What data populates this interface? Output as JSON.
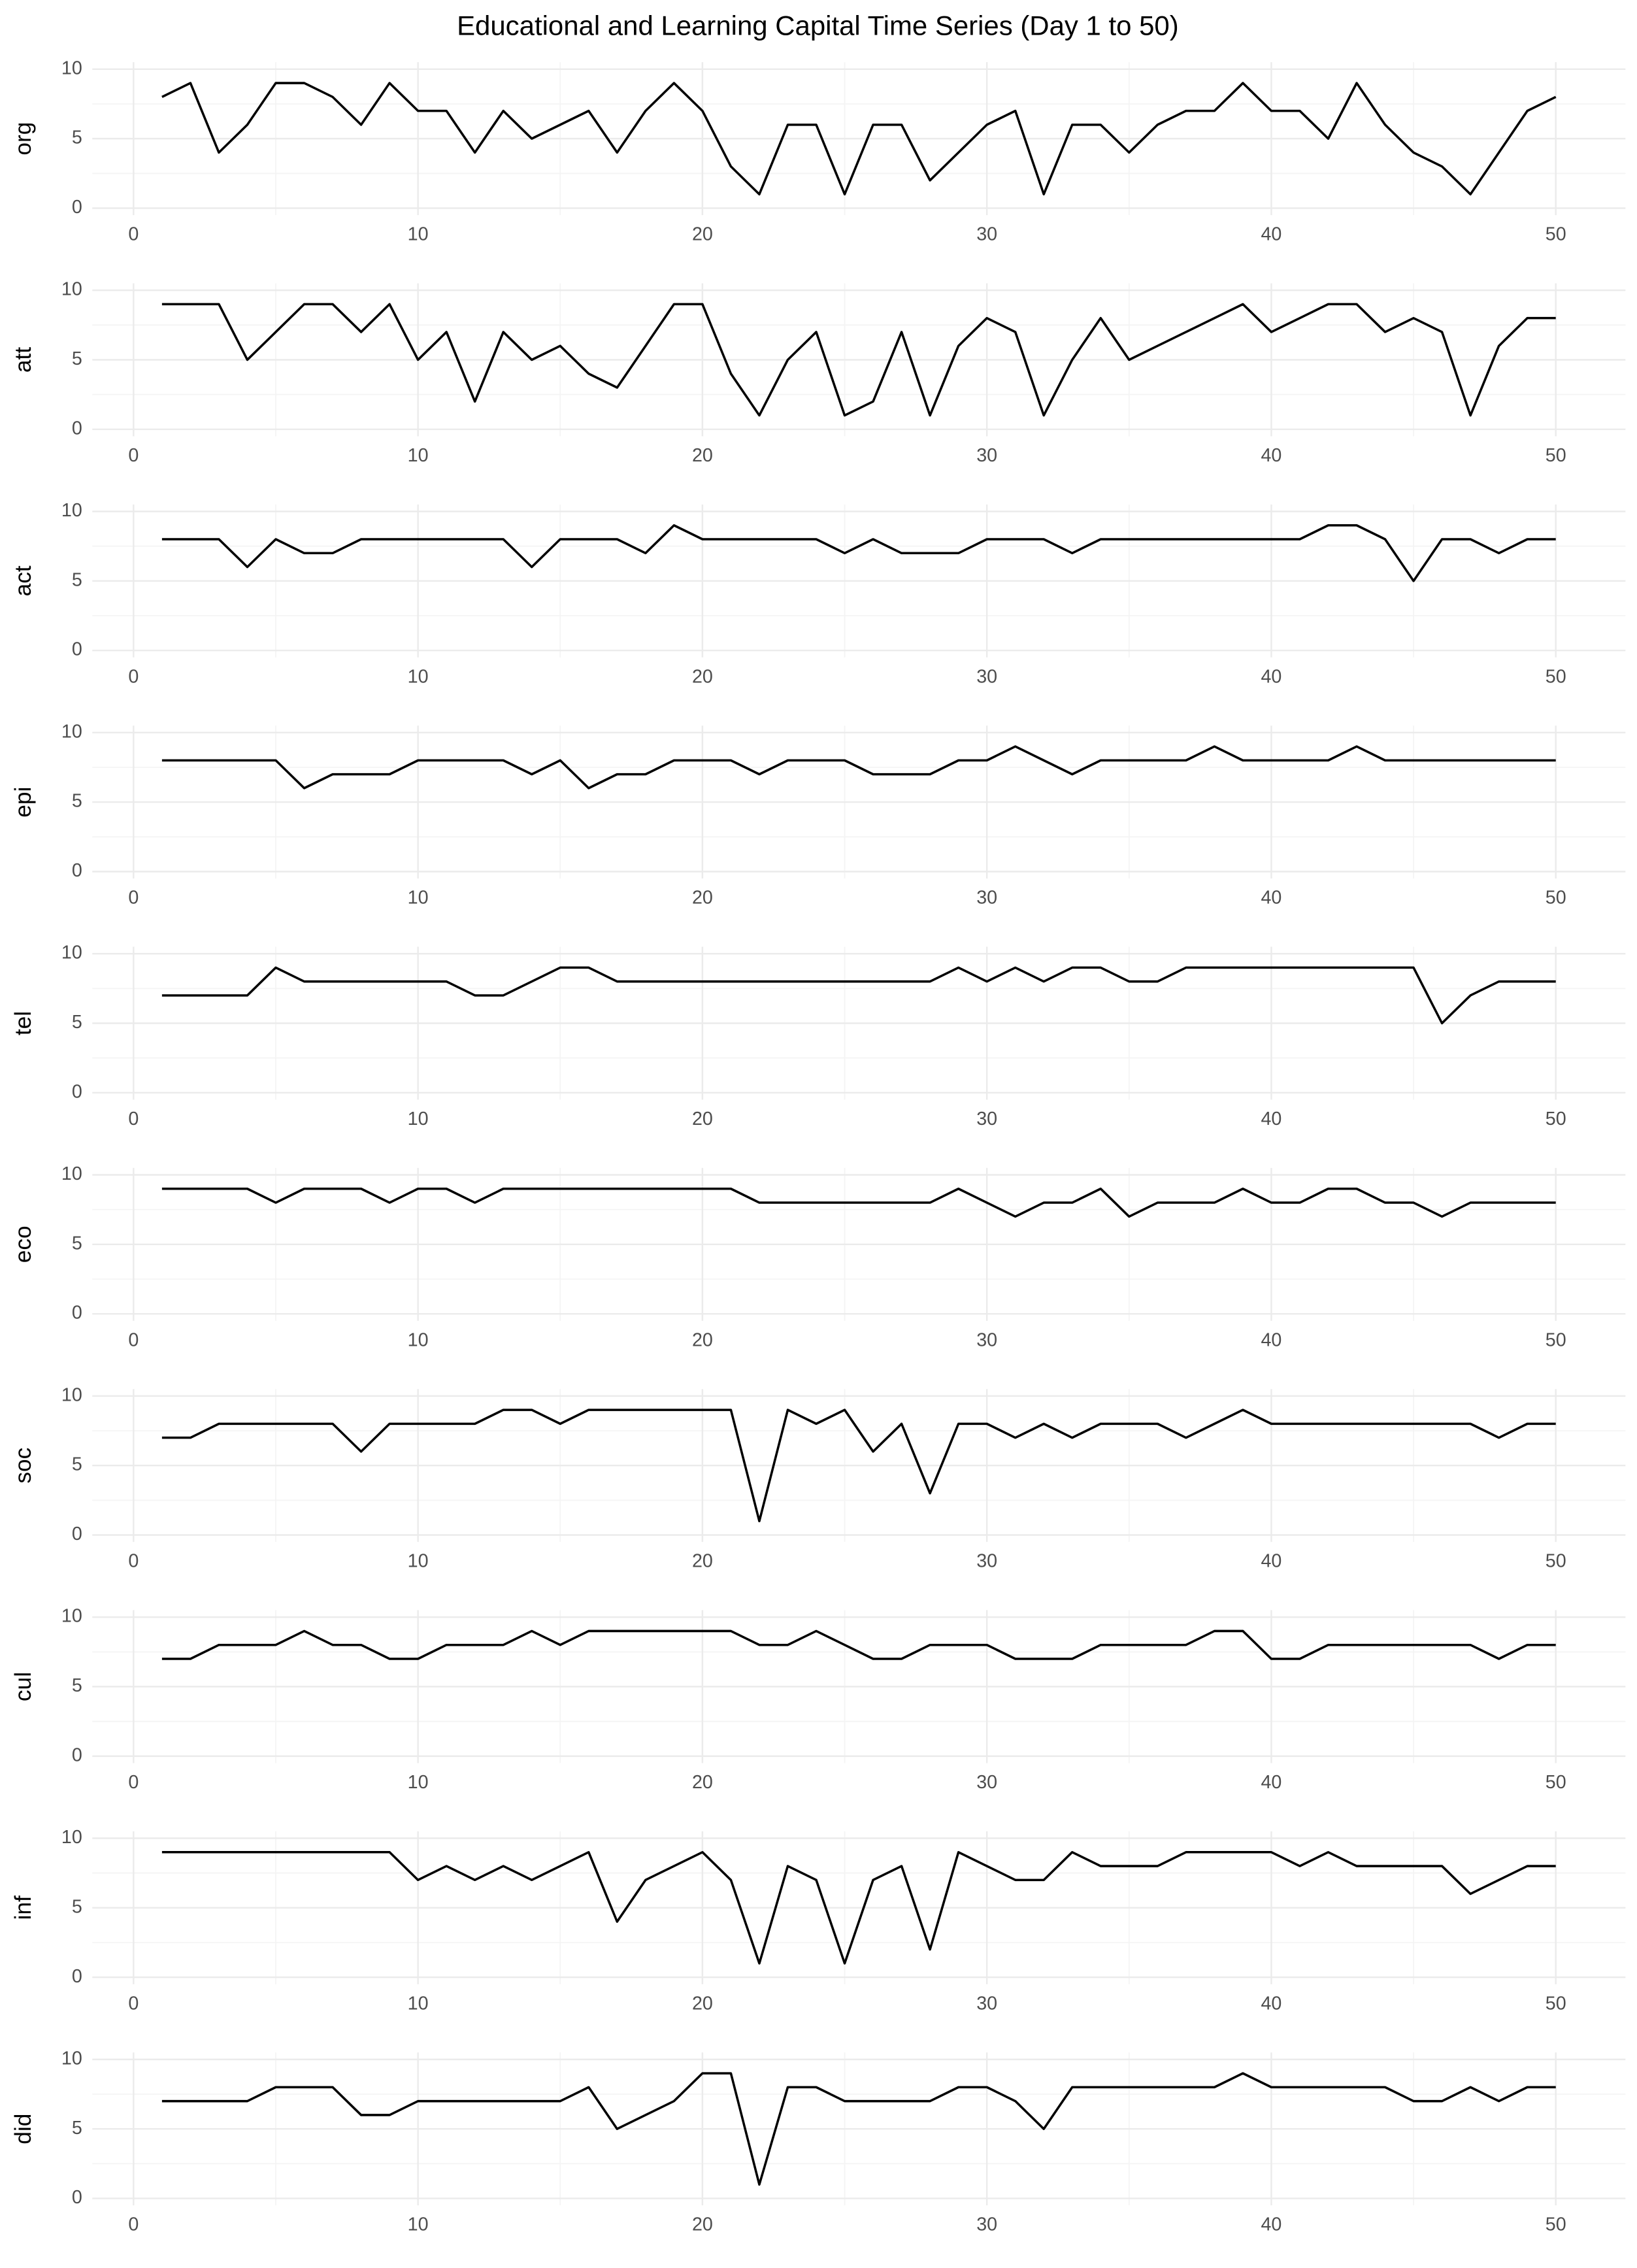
{
  "title": "Educational and Learning Capital Time Series (Day 1 to 50)",
  "chart_data": [
    {
      "type": "line",
      "ylabel": "org",
      "color": "#000000",
      "grid": true,
      "x": [
        1,
        2,
        3,
        4,
        5,
        6,
        7,
        8,
        9,
        10,
        11,
        12,
        13,
        14,
        15,
        16,
        17,
        18,
        19,
        20,
        21,
        22,
        23,
        24,
        25,
        26,
        27,
        28,
        29,
        30,
        31,
        32,
        33,
        34,
        35,
        36,
        37,
        38,
        39,
        40,
        41,
        42,
        43,
        44,
        45,
        46,
        47,
        48,
        49,
        50
      ],
      "values": [
        8,
        9,
        4,
        6,
        9,
        9,
        8,
        6,
        9,
        7,
        7,
        4,
        7,
        5,
        6,
        7,
        4,
        7,
        9,
        7,
        3,
        1,
        6,
        6,
        1,
        6,
        6,
        2,
        4,
        6,
        7,
        1,
        6,
        6,
        4,
        6,
        7,
        7,
        9,
        7,
        7,
        5,
        9,
        6,
        4,
        3,
        1,
        4,
        7,
        8
      ],
      "xlim": [
        -1.45,
        52.45
      ],
      "ylim": [
        -0.5,
        10.5
      ],
      "xticks": [
        0,
        10,
        20,
        30,
        40,
        50
      ],
      "yticks": [
        0,
        5,
        10
      ],
      "xminor": [
        5,
        15,
        25,
        35,
        45
      ],
      "yminor": [
        2.5,
        7.5
      ]
    },
    {
      "type": "line",
      "ylabel": "att",
      "color": "#000000",
      "grid": true,
      "x": [
        1,
        2,
        3,
        4,
        5,
        6,
        7,
        8,
        9,
        10,
        11,
        12,
        13,
        14,
        15,
        16,
        17,
        18,
        19,
        20,
        21,
        22,
        23,
        24,
        25,
        26,
        27,
        28,
        29,
        30,
        31,
        32,
        33,
        34,
        35,
        36,
        37,
        38,
        39,
        40,
        41,
        42,
        43,
        44,
        45,
        46,
        47,
        48,
        49,
        50
      ],
      "values": [
        9,
        9,
        9,
        5,
        7,
        9,
        9,
        7,
        9,
        5,
        7,
        2,
        7,
        5,
        6,
        4,
        3,
        6,
        9,
        9,
        4,
        1,
        5,
        7,
        1,
        2,
        7,
        1,
        6,
        8,
        7,
        1,
        5,
        8,
        5,
        6,
        7,
        8,
        9,
        7,
        8,
        9,
        9,
        7,
        8,
        7,
        1,
        6,
        8,
        8
      ],
      "xlim": [
        -1.45,
        52.45
      ],
      "ylim": [
        -0.5,
        10.5
      ],
      "xticks": [
        0,
        10,
        20,
        30,
        40,
        50
      ],
      "yticks": [
        0,
        5,
        10
      ],
      "xminor": [
        5,
        15,
        25,
        35,
        45
      ],
      "yminor": [
        2.5,
        7.5
      ]
    },
    {
      "type": "line",
      "ylabel": "act",
      "color": "#000000",
      "grid": true,
      "x": [
        1,
        2,
        3,
        4,
        5,
        6,
        7,
        8,
        9,
        10,
        11,
        12,
        13,
        14,
        15,
        16,
        17,
        18,
        19,
        20,
        21,
        22,
        23,
        24,
        25,
        26,
        27,
        28,
        29,
        30,
        31,
        32,
        33,
        34,
        35,
        36,
        37,
        38,
        39,
        40,
        41,
        42,
        43,
        44,
        45,
        46,
        47,
        48,
        49,
        50
      ],
      "values": [
        8,
        8,
        8,
        6,
        8,
        7,
        7,
        8,
        8,
        8,
        8,
        8,
        8,
        6,
        8,
        8,
        8,
        7,
        9,
        8,
        8,
        8,
        8,
        8,
        7,
        8,
        7,
        7,
        7,
        8,
        8,
        8,
        7,
        8,
        8,
        8,
        8,
        8,
        8,
        8,
        8,
        9,
        9,
        8,
        5,
        8,
        8,
        7,
        8,
        8
      ],
      "xlim": [
        -1.45,
        52.45
      ],
      "ylim": [
        -0.5,
        10.5
      ],
      "xticks": [
        0,
        10,
        20,
        30,
        40,
        50
      ],
      "yticks": [
        0,
        5,
        10
      ],
      "xminor": [
        5,
        15,
        25,
        35,
        45
      ],
      "yminor": [
        2.5,
        7.5
      ]
    },
    {
      "type": "line",
      "ylabel": "epi",
      "color": "#000000",
      "grid": true,
      "x": [
        1,
        2,
        3,
        4,
        5,
        6,
        7,
        8,
        9,
        10,
        11,
        12,
        13,
        14,
        15,
        16,
        17,
        18,
        19,
        20,
        21,
        22,
        23,
        24,
        25,
        26,
        27,
        28,
        29,
        30,
        31,
        32,
        33,
        34,
        35,
        36,
        37,
        38,
        39,
        40,
        41,
        42,
        43,
        44,
        45,
        46,
        47,
        48,
        49,
        50
      ],
      "values": [
        8,
        8,
        8,
        8,
        8,
        6,
        7,
        7,
        7,
        8,
        8,
        8,
        8,
        7,
        8,
        6,
        7,
        7,
        8,
        8,
        8,
        7,
        8,
        8,
        8,
        7,
        7,
        7,
        8,
        8,
        9,
        8,
        7,
        8,
        8,
        8,
        8,
        9,
        8,
        8,
        8,
        8,
        9,
        8,
        8,
        8,
        8,
        8,
        8,
        8
      ],
      "xlim": [
        -1.45,
        52.45
      ],
      "ylim": [
        -0.5,
        10.5
      ],
      "xticks": [
        0,
        10,
        20,
        30,
        40,
        50
      ],
      "yticks": [
        0,
        5,
        10
      ],
      "xminor": [
        5,
        15,
        25,
        35,
        45
      ],
      "yminor": [
        2.5,
        7.5
      ]
    },
    {
      "type": "line",
      "ylabel": "tel",
      "color": "#000000",
      "grid": true,
      "x": [
        1,
        2,
        3,
        4,
        5,
        6,
        7,
        8,
        9,
        10,
        11,
        12,
        13,
        14,
        15,
        16,
        17,
        18,
        19,
        20,
        21,
        22,
        23,
        24,
        25,
        26,
        27,
        28,
        29,
        30,
        31,
        32,
        33,
        34,
        35,
        36,
        37,
        38,
        39,
        40,
        41,
        42,
        43,
        44,
        45,
        46,
        47,
        48,
        49,
        50
      ],
      "values": [
        7,
        7,
        7,
        7,
        9,
        8,
        8,
        8,
        8,
        8,
        8,
        7,
        7,
        8,
        9,
        9,
        8,
        8,
        8,
        8,
        8,
        8,
        8,
        8,
        8,
        8,
        8,
        8,
        9,
        8,
        9,
        8,
        9,
        9,
        8,
        8,
        9,
        9,
        9,
        9,
        9,
        9,
        9,
        9,
        9,
        5,
        7,
        8,
        8,
        8
      ],
      "xlim": [
        -1.45,
        52.45
      ],
      "ylim": [
        -0.5,
        10.5
      ],
      "xticks": [
        0,
        10,
        20,
        30,
        40,
        50
      ],
      "yticks": [
        0,
        5,
        10
      ],
      "xminor": [
        5,
        15,
        25,
        35,
        45
      ],
      "yminor": [
        2.5,
        7.5
      ]
    },
    {
      "type": "line",
      "ylabel": "eco",
      "color": "#000000",
      "grid": true,
      "x": [
        1,
        2,
        3,
        4,
        5,
        6,
        7,
        8,
        9,
        10,
        11,
        12,
        13,
        14,
        15,
        16,
        17,
        18,
        19,
        20,
        21,
        22,
        23,
        24,
        25,
        26,
        27,
        28,
        29,
        30,
        31,
        32,
        33,
        34,
        35,
        36,
        37,
        38,
        39,
        40,
        41,
        42,
        43,
        44,
        45,
        46,
        47,
        48,
        49,
        50
      ],
      "values": [
        9,
        9,
        9,
        9,
        8,
        9,
        9,
        9,
        8,
        9,
        9,
        8,
        9,
        9,
        9,
        9,
        9,
        9,
        9,
        9,
        9,
        8,
        8,
        8,
        8,
        8,
        8,
        8,
        9,
        8,
        7,
        8,
        8,
        9,
        7,
        8,
        8,
        8,
        9,
        8,
        8,
        9,
        9,
        8,
        8,
        7,
        8,
        8,
        8,
        8
      ],
      "xlim": [
        -1.45,
        52.45
      ],
      "ylim": [
        -0.5,
        10.5
      ],
      "xticks": [
        0,
        10,
        20,
        30,
        40,
        50
      ],
      "yticks": [
        0,
        5,
        10
      ],
      "xminor": [
        5,
        15,
        25,
        35,
        45
      ],
      "yminor": [
        2.5,
        7.5
      ]
    },
    {
      "type": "line",
      "ylabel": "soc",
      "color": "#000000",
      "grid": true,
      "x": [
        1,
        2,
        3,
        4,
        5,
        6,
        7,
        8,
        9,
        10,
        11,
        12,
        13,
        14,
        15,
        16,
        17,
        18,
        19,
        20,
        21,
        22,
        23,
        24,
        25,
        26,
        27,
        28,
        29,
        30,
        31,
        32,
        33,
        34,
        35,
        36,
        37,
        38,
        39,
        40,
        41,
        42,
        43,
        44,
        45,
        46,
        47,
        48,
        49,
        50
      ],
      "values": [
        7,
        7,
        8,
        8,
        8,
        8,
        8,
        6,
        8,
        8,
        8,
        8,
        9,
        9,
        8,
        9,
        9,
        9,
        9,
        9,
        9,
        1,
        9,
        8,
        9,
        6,
        8,
        3,
        8,
        8,
        7,
        8,
        7,
        8,
        8,
        8,
        7,
        8,
        9,
        8,
        8,
        8,
        8,
        8,
        8,
        8,
        8,
        7,
        8,
        8
      ],
      "xlim": [
        -1.45,
        52.45
      ],
      "ylim": [
        -0.5,
        10.5
      ],
      "xticks": [
        0,
        10,
        20,
        30,
        40,
        50
      ],
      "yticks": [
        0,
        5,
        10
      ],
      "xminor": [
        5,
        15,
        25,
        35,
        45
      ],
      "yminor": [
        2.5,
        7.5
      ]
    },
    {
      "type": "line",
      "ylabel": "cul",
      "color": "#000000",
      "grid": true,
      "x": [
        1,
        2,
        3,
        4,
        5,
        6,
        7,
        8,
        9,
        10,
        11,
        12,
        13,
        14,
        15,
        16,
        17,
        18,
        19,
        20,
        21,
        22,
        23,
        24,
        25,
        26,
        27,
        28,
        29,
        30,
        31,
        32,
        33,
        34,
        35,
        36,
        37,
        38,
        39,
        40,
        41,
        42,
        43,
        44,
        45,
        46,
        47,
        48,
        49,
        50
      ],
      "values": [
        7,
        7,
        8,
        8,
        8,
        9,
        8,
        8,
        7,
        7,
        8,
        8,
        8,
        9,
        8,
        9,
        9,
        9,
        9,
        9,
        9,
        8,
        8,
        9,
        8,
        7,
        7,
        8,
        8,
        8,
        7,
        7,
        7,
        8,
        8,
        8,
        8,
        9,
        9,
        7,
        7,
        8,
        8,
        8,
        8,
        8,
        8,
        7,
        8,
        8
      ],
      "xlim": [
        -1.45,
        52.45
      ],
      "ylim": [
        -0.5,
        10.5
      ],
      "xticks": [
        0,
        10,
        20,
        30,
        40,
        50
      ],
      "yticks": [
        0,
        5,
        10
      ],
      "xminor": [
        5,
        15,
        25,
        35,
        45
      ],
      "yminor": [
        2.5,
        7.5
      ]
    },
    {
      "type": "line",
      "ylabel": "inf",
      "color": "#000000",
      "grid": true,
      "x": [
        1,
        2,
        3,
        4,
        5,
        6,
        7,
        8,
        9,
        10,
        11,
        12,
        13,
        14,
        15,
        16,
        17,
        18,
        19,
        20,
        21,
        22,
        23,
        24,
        25,
        26,
        27,
        28,
        29,
        30,
        31,
        32,
        33,
        34,
        35,
        36,
        37,
        38,
        39,
        40,
        41,
        42,
        43,
        44,
        45,
        46,
        47,
        48,
        49,
        50
      ],
      "values": [
        9,
        9,
        9,
        9,
        9,
        9,
        9,
        9,
        9,
        7,
        8,
        7,
        8,
        7,
        8,
        9,
        4,
        7,
        8,
        9,
        7,
        1,
        8,
        7,
        1,
        7,
        8,
        2,
        9,
        8,
        7,
        7,
        9,
        8,
        8,
        8,
        9,
        9,
        9,
        9,
        8,
        9,
        8,
        8,
        8,
        8,
        6,
        7,
        8,
        8
      ],
      "xlim": [
        -1.45,
        52.45
      ],
      "ylim": [
        -0.5,
        10.5
      ],
      "xticks": [
        0,
        10,
        20,
        30,
        40,
        50
      ],
      "yticks": [
        0,
        5,
        10
      ],
      "xminor": [
        5,
        15,
        25,
        35,
        45
      ],
      "yminor": [
        2.5,
        7.5
      ]
    },
    {
      "type": "line",
      "ylabel": "did",
      "color": "#000000",
      "grid": true,
      "x": [
        1,
        2,
        3,
        4,
        5,
        6,
        7,
        8,
        9,
        10,
        11,
        12,
        13,
        14,
        15,
        16,
        17,
        18,
        19,
        20,
        21,
        22,
        23,
        24,
        25,
        26,
        27,
        28,
        29,
        30,
        31,
        32,
        33,
        34,
        35,
        36,
        37,
        38,
        39,
        40,
        41,
        42,
        43,
        44,
        45,
        46,
        47,
        48,
        49,
        50
      ],
      "values": [
        7,
        7,
        7,
        7,
        8,
        8,
        8,
        6,
        6,
        7,
        7,
        7,
        7,
        7,
        7,
        8,
        5,
        6,
        7,
        9,
        9,
        1,
        8,
        8,
        7,
        7,
        7,
        7,
        8,
        8,
        7,
        5,
        8,
        8,
        8,
        8,
        8,
        8,
        9,
        8,
        8,
        8,
        8,
        8,
        7,
        7,
        8,
        7,
        8,
        8
      ],
      "xlim": [
        -1.45,
        52.45
      ],
      "ylim": [
        -0.5,
        10.5
      ],
      "xticks": [
        0,
        10,
        20,
        30,
        40,
        50
      ],
      "yticks": [
        0,
        5,
        10
      ],
      "xminor": [
        5,
        15,
        25,
        35,
        45
      ],
      "yminor": [
        2.5,
        7.5
      ]
    }
  ]
}
